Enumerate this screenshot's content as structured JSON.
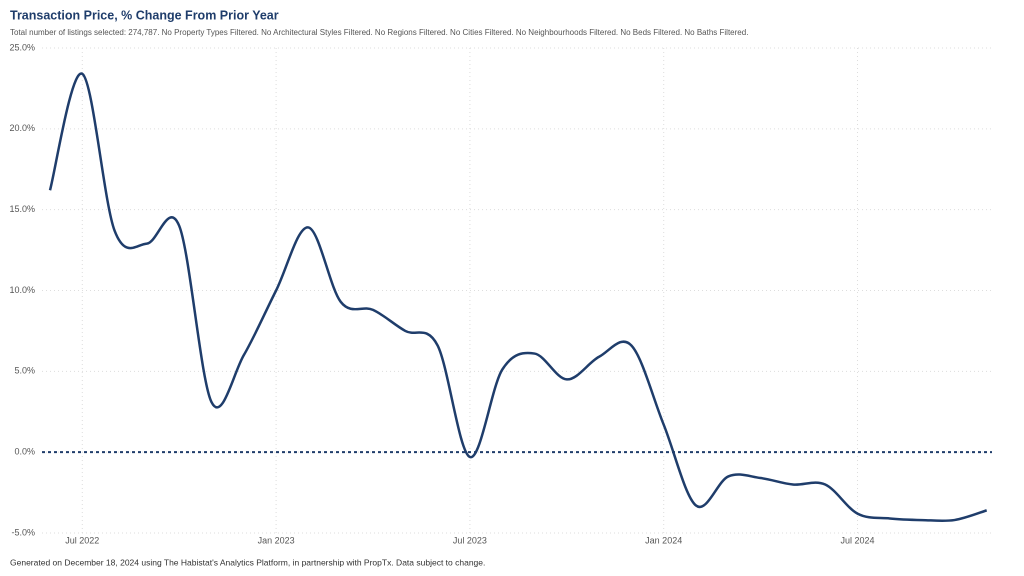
{
  "chart_data": {
    "type": "line",
    "title": "Transaction Price, % Change From Prior Year",
    "subtitle": "Total number of listings selected: 274,787. No Property Types Filtered. No Architectural Styles Filtered. No Regions Filtered. No Cities Filtered. No Neighbourhoods Filtered. No Beds Filtered. No Baths Filtered.",
    "footer": "Generated on December 18, 2024 using The Habistat's Analytics Platform, in partnership with PropTx. Data subject to change.",
    "categories": [
      null,
      "Jul 2022",
      null,
      null,
      null,
      null,
      null,
      "Jan 2023",
      null,
      null,
      null,
      null,
      null,
      "Jul 2023",
      null,
      null,
      null,
      null,
      null,
      "Jan 2024",
      null,
      null,
      null,
      null,
      null,
      "Jul 2024",
      null,
      null,
      null,
      null
    ],
    "series": [
      {
        "name": "Transaction Price % Change",
        "color": "#1f3d6b",
        "values": [
          16.2,
          23.4,
          13.7,
          12.9,
          14.0,
          3.1,
          6.0,
          10.0,
          13.9,
          9.3,
          8.8,
          7.5,
          6.6,
          -0.3,
          5.1,
          6.1,
          4.5,
          5.9,
          6.6,
          1.7,
          -3.3,
          -1.5,
          -1.6,
          -2.0,
          -2.0,
          -3.8,
          -4.1,
          -4.2,
          -4.2,
          -3.6
        ]
      }
    ],
    "ylim": [
      -5,
      25
    ],
    "yticks": [
      {
        "value": -5,
        "label": "-5.0%"
      },
      {
        "value": 0,
        "label": "0.0%"
      },
      {
        "value": 5,
        "label": "5.0%"
      },
      {
        "value": 10,
        "label": "10.0%"
      },
      {
        "value": 15,
        "label": "15.0%"
      },
      {
        "value": 20,
        "label": "20.0%"
      },
      {
        "value": 25,
        "label": "25.0%"
      }
    ],
    "reference_line": 0,
    "grid": true
  }
}
